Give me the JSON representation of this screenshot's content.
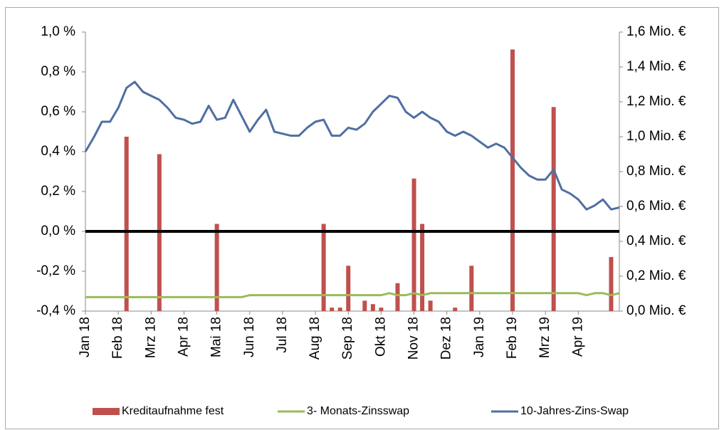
{
  "chart_data": {
    "type": "bar-line",
    "categories": [
      "Jan 18",
      null,
      null,
      null,
      "Feb 18",
      null,
      null,
      null,
      "Mrz 18",
      null,
      null,
      null,
      "Apr 18",
      null,
      null,
      null,
      "Mai 18",
      null,
      null,
      null,
      "Jun 18",
      null,
      null,
      null,
      "Jul 18",
      null,
      null,
      null,
      "Aug 18",
      null,
      null,
      null,
      "Sep 18",
      null,
      null,
      null,
      "Okt 18",
      null,
      null,
      null,
      "Nov 18",
      null,
      null,
      null,
      "Dez 18",
      null,
      null,
      null,
      "Jan 19",
      null,
      null,
      null,
      "Feb 19",
      null,
      null,
      null,
      "Mrz 19",
      null,
      null,
      null,
      "Apr 19",
      null,
      null,
      null,
      null,
      null
    ],
    "series": [
      {
        "name": "Kreditaufnahme fest",
        "kind": "bar",
        "axis": "y2",
        "color": "#c0504d",
        "values": [
          null,
          null,
          null,
          null,
          null,
          1.0,
          null,
          null,
          null,
          0.9,
          null,
          null,
          null,
          null,
          null,
          null,
          0.5,
          null,
          null,
          null,
          null,
          null,
          null,
          null,
          null,
          null,
          null,
          null,
          null,
          0.5,
          0.02,
          0.02,
          0.26,
          null,
          0.06,
          0.04,
          0.02,
          null,
          0.16,
          null,
          0.76,
          0.5,
          0.06,
          null,
          null,
          0.02,
          null,
          0.26,
          null,
          null,
          null,
          null,
          1.5,
          null,
          null,
          null,
          null,
          1.17,
          null,
          null,
          null,
          null,
          null,
          null,
          0.31,
          null
        ]
      },
      {
        "name": "3- Monats-Zinsswap",
        "kind": "line",
        "axis": "y",
        "color": "#9bbb59",
        "values": [
          -0.33,
          -0.33,
          -0.33,
          -0.33,
          -0.33,
          -0.33,
          -0.33,
          -0.33,
          -0.33,
          -0.33,
          -0.33,
          -0.33,
          -0.33,
          -0.33,
          -0.33,
          -0.33,
          -0.33,
          -0.33,
          -0.33,
          -0.33,
          -0.32,
          -0.32,
          -0.32,
          -0.32,
          -0.32,
          -0.32,
          -0.32,
          -0.32,
          -0.32,
          -0.32,
          -0.32,
          -0.32,
          -0.32,
          -0.32,
          -0.32,
          -0.32,
          -0.32,
          -0.31,
          -0.32,
          -0.32,
          -0.31,
          -0.32,
          -0.31,
          -0.31,
          -0.31,
          -0.31,
          -0.31,
          -0.31,
          -0.31,
          -0.31,
          -0.31,
          -0.31,
          -0.31,
          -0.31,
          -0.31,
          -0.31,
          -0.31,
          -0.31,
          -0.31,
          -0.31,
          -0.31,
          -0.32,
          -0.31,
          -0.31,
          -0.32,
          -0.31
        ]
      },
      {
        "name": "10-Jahres-Zins-Swap",
        "kind": "line",
        "axis": "y",
        "color": "#4f6fa0",
        "values": [
          0.4,
          0.47,
          0.55,
          0.55,
          0.62,
          0.72,
          0.75,
          0.7,
          0.68,
          0.66,
          0.62,
          0.57,
          0.56,
          0.54,
          0.55,
          0.63,
          0.56,
          0.57,
          0.66,
          0.58,
          0.5,
          0.56,
          0.61,
          0.5,
          0.49,
          0.48,
          0.48,
          0.52,
          0.55,
          0.56,
          0.48,
          0.48,
          0.52,
          0.51,
          0.54,
          0.6,
          0.64,
          0.68,
          0.67,
          0.6,
          0.57,
          0.6,
          0.57,
          0.55,
          0.5,
          0.48,
          0.5,
          0.48,
          0.45,
          0.42,
          0.44,
          0.42,
          0.37,
          0.32,
          0.28,
          0.26,
          0.26,
          0.31,
          0.21,
          0.19,
          0.16,
          0.11,
          0.13,
          0.16,
          0.11,
          0.12
        ]
      }
    ],
    "ylim": [
      -0.4,
      1.0
    ],
    "yticks": [
      {
        "value": -0.4,
        "label": "-0,4 %"
      },
      {
        "value": -0.2,
        "label": "-0,2 %"
      },
      {
        "value": 0,
        "label": "0,0 %"
      },
      {
        "value": 0.2,
        "label": "0,2 %"
      },
      {
        "value": 0.4,
        "label": "0,4 %"
      },
      {
        "value": 0.6,
        "label": "0,6 %"
      },
      {
        "value": 0.8,
        "label": "0,8 %"
      },
      {
        "value": 1.0,
        "label": "1,0 %"
      }
    ],
    "y2lim": [
      0,
      1.6
    ],
    "y2ticks": [
      {
        "value": 0,
        "label": "0,0 Mio. €"
      },
      {
        "value": 0.2,
        "label": "0,2 Mio. €"
      },
      {
        "value": 0.4,
        "label": "0,4 Mio. €"
      },
      {
        "value": 0.6,
        "label": "0,6 Mio. €"
      },
      {
        "value": 0.8,
        "label": "0,8 Mio. €"
      },
      {
        "value": 1.0,
        "label": "1,0 Mio. €"
      },
      {
        "value": 1.2,
        "label": "1,2 Mio. €"
      },
      {
        "value": 1.4,
        "label": "1,4 Mio. €"
      },
      {
        "value": 1.6,
        "label": "1,6 Mio. €"
      }
    ],
    "zero_line": true,
    "grid": false,
    "legend": "bottom"
  }
}
